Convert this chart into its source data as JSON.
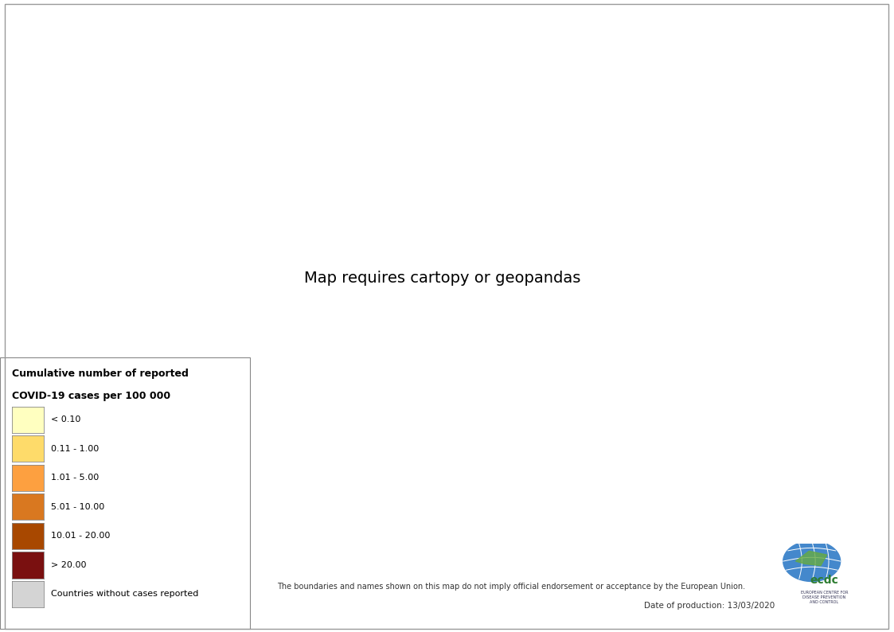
{
  "legend_title_line1": "Cumulative number of reported",
  "legend_title_line2": "COVID-19 cases per 100 000",
  "legend_labels": [
    "< 0.10",
    "0.11 - 1.00",
    "1.01 - 5.00",
    "5.01 - 10.00",
    "10.01 - 20.00",
    "> 20.00",
    "Countries without cases reported"
  ],
  "legend_colors": [
    "#FFFFC0",
    "#FEDB6A",
    "#FDA040",
    "#D97820",
    "#A84800",
    "#7A1010",
    "#D4D4D4"
  ],
  "boundary_color": "#AAAAAA",
  "background_color": "#FFFFFF",
  "ocean_color": "#FFFFFF",
  "border_linewidth": 0.3,
  "disclaimer": "The boundaries and names shown on this map do not imply official endorsement or acceptance by the European Union.",
  "date_text": "Date of production: 13/03/2020",
  "specific_colors": {
    "China": "#A84800",
    "South Korea": "#FDA040",
    "Japan": "#FEDB6A",
    "Iran": "#A84800",
    "Italy": "#7A1010",
    "Germany": "#FDA040",
    "France": "#FDA040",
    "Spain": "#FDA040",
    "United States of America": "#FEDB6A",
    "Australia": "#FEDB6A",
    "Canada": "#FEDB6A",
    "Switzerland": "#FDA040",
    "Norway": "#FDA040",
    "Sweden": "#FDA040",
    "Denmark": "#FDA040",
    "Netherlands": "#FDA040",
    "United Kingdom": "#FEDB6A",
    "Belgium": "#FDA040",
    "Austria": "#FDA040",
    "Greece": "#FEDB6A",
    "Portugal": "#FEDB6A",
    "Finland": "#FEDB6A",
    "Ireland": "#FEDB6A",
    "Czechia": "#FEDB6A",
    "Czech Rep.": "#FEDB6A",
    "Singapore": "#FEDB6A",
    "Bahrain": "#D97820",
    "Iceland": "#7A1010",
    "San Marino": "#7A1010",
    "Kuwait": "#FEDB6A",
    "Saudi Arabia": "#FEDB6A",
    "United Arab Emirates": "#FEDB6A",
    "Qatar": "#FEDB6A",
    "Israel": "#FEDB6A",
    "Lebanon": "#FEDB6A",
    "Iraq": "#FEDB6A",
    "Turkey": "#FEDB6A",
    "Russia": "#FFFFC0",
    "India": "#FFFFC0",
    "Brazil": "#FFFFC0",
    "Thailand": "#FEDB6A",
    "Malaysia": "#FEDB6A",
    "Indonesia": "#FFFFC0",
    "Philippines": "#FFFFC0",
    "Vietnam": "#FFFFC0",
    "Pakistan": "#FFFFC0",
    "Egypt": "#FEDB6A",
    "Algeria": "#FFFFC0",
    "Morocco": "#FFFFC0",
    "South Africa": "#FFFFC0",
    "Nigeria": "#FFFFC0",
    "Mexico": "#FFFFC0",
    "Argentina": "#FFFFC0",
    "Colombia": "#FFFFC0",
    "Chile": "#FFFFC0",
    "Peru": "#FFFFC0",
    "Ecuador": "#FFFFC0",
    "Panama": "#FFFFC0",
    "Jordan": "#FEDB6A",
    "Serbia": "#FEDB6A",
    "Croatia": "#FEDB6A",
    "Slovenia": "#FEDB6A",
    "Romania": "#FFFFC0",
    "Poland": "#FFFFC0",
    "Ukraine": "#FFFFC0",
    "Hungary": "#FEDB6A",
    "Slovakia": "#FEDB6A",
    "Estonia": "#FEDB6A",
    "Latvia": "#FEDB6A",
    "Lithuania": "#FEDB6A",
    "Luxembourg": "#D97820",
    "Bulgaria": "#FFFFC0",
    "North Macedonia": "#FEDB6A",
    "Macedonia": "#FEDB6A",
    "Bosnia and Herz.": "#FEDB6A",
    "Bosnia and Herzegovina": "#FEDB6A",
    "Albania": "#FEDB6A",
    "Montenegro": "#FEDB6A",
    "Moldova": "#FFFFC0",
    "Belarus": "#FFFFC0",
    "Armenia": "#FEDB6A",
    "Azerbaijan": "#FEDB6A",
    "Georgia": "#FEDB6A",
    "Kazakhstan": "#FFFFC0",
    "Uzbekistan": "#FFFFC0",
    "Kyrgyzstan": "#FFFFC0",
    "Tajikistan": "#FFFFC0",
    "Turkmenistan": "#FFFFC0",
    "Afghanistan": "#FFFFC0",
    "Nepal": "#FFFFC0",
    "Sri Lanka": "#FFFFC0",
    "Bangladesh": "#FFFFC0",
    "Maldives": "#FEDB6A",
    "Mongolia": "#FFFFC0",
    "Cambodia": "#FFFFC0",
    "Myanmar": "#FFFFC0",
    "Brunei": "#D97820",
    "New Zealand": "#FEDB6A",
    "Taiwan": "#FEDB6A",
    "Oman": "#FEDB6A",
    "Bhutan": "#FEDB6A",
    "Senegal": "#FFFFC0",
    "Tunisia": "#FEDB6A",
    "Cameroon": "#FFFFC0",
    "Ethiopia": "#FFFFC0",
    "Kenya": "#FFFFC0",
    "Togo": "#FFFFC0",
    "Rwanda": "#FFFFC0",
    "Ghana": "#FFFFC0",
    "Tanzania": "#FFFFC0",
    "Burkina Faso": "#FFFFC0",
    "Ivory Coast": "#FFFFC0",
    "Cote d'Ivoire": "#FFFFC0",
    "Libya": "#D4D4D4",
    "Bolivia": "#FFFFC0",
    "Venezuela": "#FFFFC0",
    "Paraguay": "#FFFFC0",
    "Uruguay": "#FFFFC0",
    "Honduras": "#FFFFC0",
    "Guatemala": "#FFFFC0",
    "Cuba": "#FFFFC0",
    "Dominican Rep.": "#FFFFC0",
    "Costa Rica": "#FFFFC0",
    "Greenland": "#D4D4D4",
    "Sudan": "#D4D4D4",
    "Somalia": "#D4D4D4",
    "Chad": "#D4D4D4",
    "Mali": "#D4D4D4",
    "Niger": "#D4D4D4",
    "Mauritania": "#D4D4D4",
    "Central African Rep.": "#D4D4D4",
    "Dem. Rep. Congo": "#D4D4D4",
    "Congo": "#D4D4D4",
    "Gabon": "#D4D4D4",
    "Eq. Guinea": "#D4D4D4",
    "Eritrea": "#D4D4D4",
    "Djibouti": "#D4D4D4",
    "Burundi": "#D4D4D4",
    "Uganda": "#D4D4D4",
    "Angola": "#D4D4D4",
    "Zambia": "#D4D4D4",
    "Zimbabwe": "#D4D4D4",
    "Malawi": "#D4D4D4",
    "Mozambique": "#D4D4D4",
    "Botswana": "#D4D4D4",
    "Namibia": "#D4D4D4",
    "Lesotho": "#D4D4D4",
    "Swaziland": "#D4D4D4",
    "eSwatini": "#D4D4D4",
    "Madagascar": "#D4D4D4",
    "Papua New Guinea": "#D4D4D4",
    "N. Korea": "#D4D4D4",
    "North Korea": "#D4D4D4",
    "Laos": "#D4D4D4",
    "Syria": "#D4D4D4",
    "Yemen": "#D4D4D4",
    "W. Sahara": "#D4D4D4",
    "Guinea": "#D4D4D4",
    "Guinea-Bissau": "#D4D4D4",
    "Sierra Leone": "#D4D4D4",
    "Liberia": "#D4D4D4",
    "Benin": "#D4D4D4",
    "Haiti": "#D4D4D4",
    "Nicaragua": "#D4D4D4",
    "El Salvador": "#D4D4D4",
    "S. Sudan": "#D4D4D4",
    "Gambia": "#D4D4D4"
  },
  "no_data_color": "#D4D4D4",
  "figsize": [
    11.23,
    7.94
  ],
  "dpi": 100
}
